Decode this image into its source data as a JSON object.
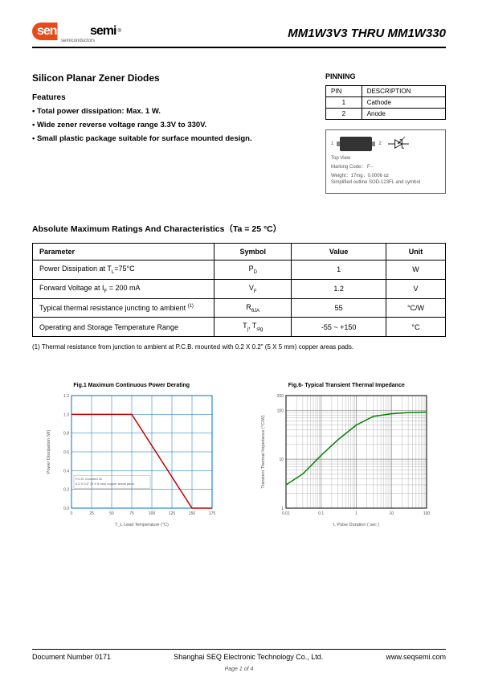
{
  "header": {
    "logo_sen": "sen",
    "logo_semi": "semi",
    "logo_r": "®",
    "logo_sub": "semiconductors",
    "part_title": "MM1W3V3 THRU MM1W330"
  },
  "main": {
    "title": "Silicon Planar Zener Diodes",
    "features_label": "Features",
    "features": [
      "• Total power dissipation: Max. 1 W.",
      "• Wide zener reverse voltage range 3.3V to 330V.",
      "• Small plastic package suitable for surface mounted design."
    ]
  },
  "pinning": {
    "title": "PINNING",
    "col_pin": "PIN",
    "col_desc": "DESCRIPTION",
    "rows": [
      {
        "pin": "1",
        "desc": "Cathode"
      },
      {
        "pin": "2",
        "desc": "Anode"
      }
    ]
  },
  "package": {
    "pin1": "1",
    "pin2": "2",
    "topview": "Top View",
    "marking": "Marking Code： F--",
    "weight": "Weight：17mg，0.0006 oz",
    "outline": "Simplified outline SOD-123FL and symbol"
  },
  "ratings": {
    "title": "Absolute Maximum Ratings And Characteristics（Ta = 25 °C）",
    "headers": {
      "param": "Parameter",
      "symbol": "Symbol",
      "value": "Value",
      "unit": "Unit"
    },
    "rows": [
      {
        "param": "Power Dissipation at T_L=75°C",
        "symbol": "P_D",
        "value": "1",
        "unit": "W"
      },
      {
        "param": "Forward Voltage at I_F = 200 mA",
        "symbol": "V_F",
        "value": "1.2",
        "unit": "V"
      },
      {
        "param": "Typical thermal resistance juncting to ambient ^(1)",
        "symbol": "R_θJA",
        "value": "55",
        "unit": "°C/W"
      },
      {
        "param": "Operating and Storage Temperature Range",
        "symbol": "T_j, T_stg",
        "value": "-55 ~ +150",
        "unit": "°C"
      }
    ],
    "footnote": "(1) Thermal resistance from junction to ambient at P.C.B. mounted with 0.2 X 0.2\" (5 X 5 mm) copper areas pads."
  },
  "chart1": {
    "title": "Fig.1 Maximum Continuous Power Derating",
    "type": "line",
    "xlabel": "T_L Lead Temperature (°C)",
    "ylabel": "Power Dissipation (W)",
    "xlim": [
      0,
      175
    ],
    "xticks": [
      0,
      25,
      50,
      75,
      100,
      125,
      150,
      175
    ],
    "ylim": [
      0,
      1.2
    ],
    "yticks": [
      0,
      0.2,
      0.4,
      0.6,
      0.8,
      1.0,
      1.2
    ],
    "line_color": "#c00000",
    "grid_color": "#0070c0",
    "points": [
      [
        0,
        1.0
      ],
      [
        25,
        1.0
      ],
      [
        50,
        1.0
      ],
      [
        75,
        1.0
      ],
      [
        150,
        0
      ],
      [
        175,
        0
      ]
    ],
    "note": "P.C.B. mounted on\n0.2 X 0.2\" (5 X 5 mm) copper areas pads."
  },
  "chart2": {
    "title": "Fig.6- Typical Transient Thermal Impedance",
    "type": "line-loglog",
    "xlabel": "t, Pulse Duration ( sec )",
    "ylabel": "Transient Thermal Impedance (°C/W)",
    "xlim": [
      0.01,
      100
    ],
    "xticks": [
      0.01,
      0.1,
      1,
      10,
      100
    ],
    "ylim": [
      1,
      200
    ],
    "yticks": [
      1,
      10,
      100,
      200
    ],
    "line_color": "#008000",
    "grid_color": "#888888",
    "points": [
      [
        0.01,
        3
      ],
      [
        0.03,
        5
      ],
      [
        0.1,
        12
      ],
      [
        0.3,
        25
      ],
      [
        1,
        50
      ],
      [
        3,
        75
      ],
      [
        10,
        85
      ],
      [
        30,
        90
      ],
      [
        100,
        92
      ]
    ]
  },
  "footer": {
    "docnum": "Document Number 0171",
    "company": "Shanghai SEQ Electronic Technology Co., Ltd.",
    "url": "www.seqsemi.com",
    "page": "Page 1 of 4"
  }
}
